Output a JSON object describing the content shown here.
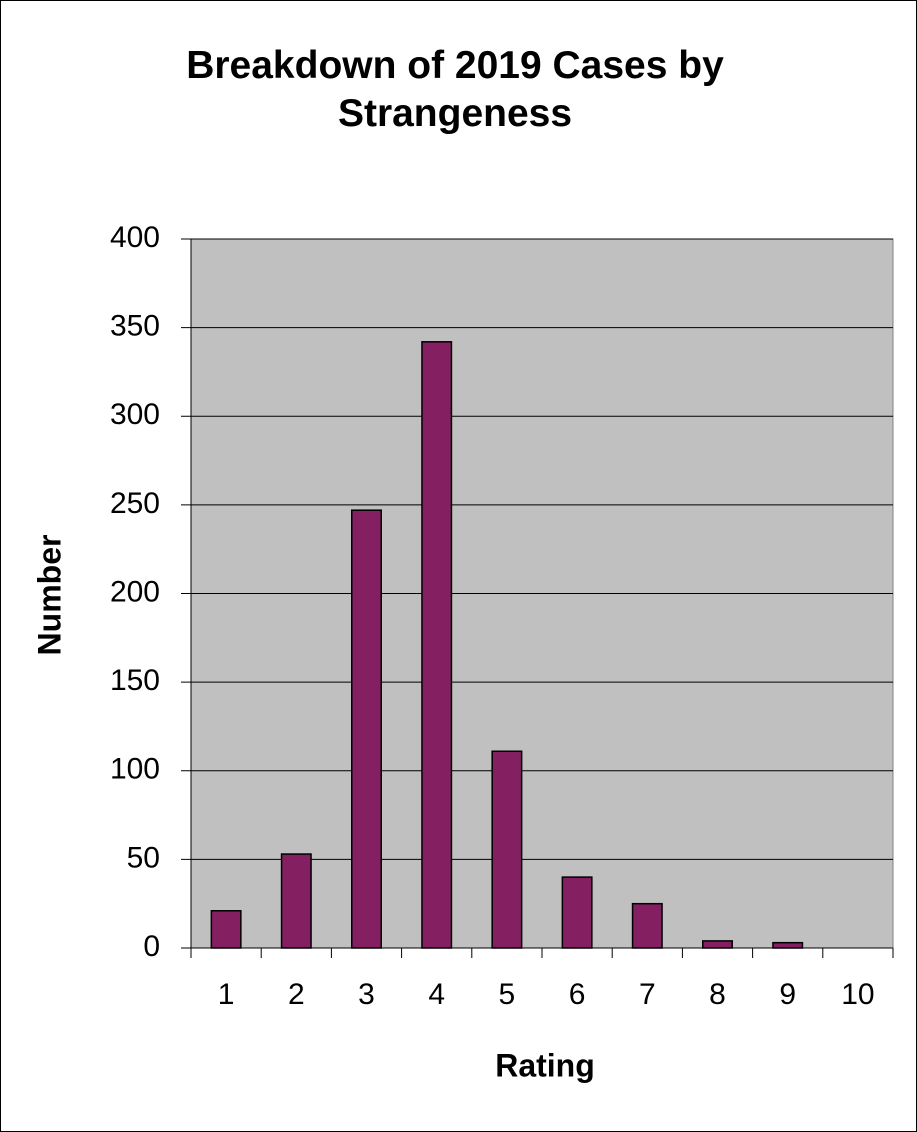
{
  "chart_data": {
    "type": "bar",
    "title": "Breakdown of 2019 Cases by Strangeness",
    "x_label": "Rating",
    "y_label": "Number",
    "categories": [
      "1",
      "2",
      "3",
      "4",
      "5",
      "6",
      "7",
      "8",
      "9",
      "10"
    ],
    "values": [
      21,
      53,
      247,
      342,
      111,
      40,
      25,
      4,
      3,
      0
    ],
    "color": "#842062",
    "ylim": [
      0,
      400
    ],
    "yticks": [
      0,
      50,
      100,
      150,
      200,
      250,
      300,
      350,
      400
    ],
    "grid": true
  }
}
